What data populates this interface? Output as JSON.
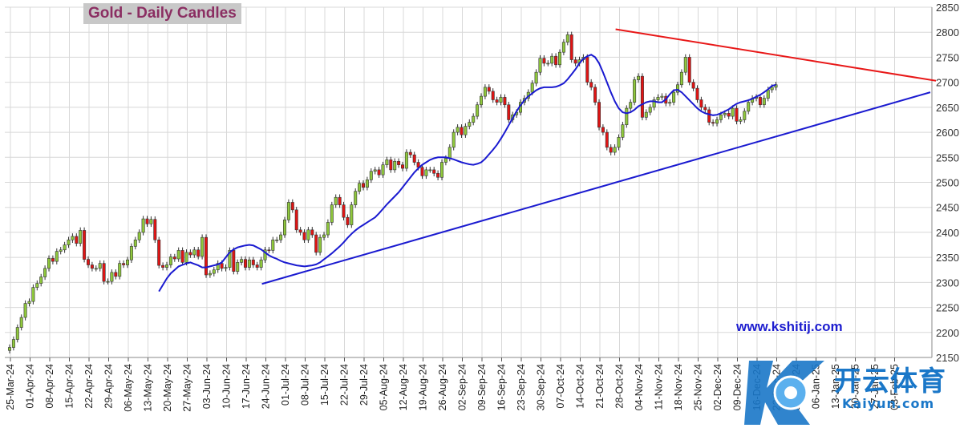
{
  "chart_data": {
    "type": "candlestick",
    "title": "Gold - Daily Candles",
    "ylim": [
      2150,
      2850
    ],
    "y_ticks": [
      2150,
      2200,
      2250,
      2300,
      2350,
      2400,
      2450,
      2500,
      2550,
      2600,
      2650,
      2700,
      2750,
      2800,
      2850
    ],
    "x_tick_labels": [
      "25-Mar-24",
      "01-Apr-24",
      "08-Apr-24",
      "15-Apr-24",
      "22-Apr-24",
      "29-Apr-24",
      "06-May-24",
      "13-May-24",
      "20-May-24",
      "27-May-24",
      "03-Jun-24",
      "10-Jun-24",
      "17-Jun-24",
      "24-Jun-24",
      "01-Jul-24",
      "08-Jul-24",
      "15-Jul-24",
      "22-Jul-24",
      "29-Jul-24",
      "05-Aug-24",
      "12-Aug-24",
      "19-Aug-24",
      "26-Aug-24",
      "02-Sep-24",
      "09-Sep-24",
      "16-Sep-24",
      "23-Sep-24",
      "30-Sep-24",
      "07-Oct-24",
      "14-Oct-24",
      "21-Oct-24",
      "28-Oct-24",
      "04-Nov-24",
      "11-Nov-24",
      "18-Nov-24",
      "25-Nov-24",
      "02-Dec-24",
      "09-Dec-24",
      "16-Dec-24",
      "23-Dec-24",
      "30-Dec-24",
      "06-Jan-25",
      "13-Jan-25",
      "20-Jan-25",
      "27-Jan-25",
      "03-Feb-25"
    ],
    "grid": true,
    "closes": [
      2170,
      2186,
      2210,
      2230,
      2258,
      2262,
      2290,
      2298,
      2311,
      2328,
      2348,
      2342,
      2362,
      2365,
      2375,
      2385,
      2392,
      2378,
      2404,
      2346,
      2335,
      2328,
      2328,
      2338,
      2302,
      2302,
      2320,
      2312,
      2338,
      2335,
      2345,
      2372,
      2385,
      2400,
      2427,
      2417,
      2426,
      2385,
      2334,
      2330,
      2335,
      2351,
      2347,
      2364,
      2340,
      2360,
      2355,
      2365,
      2352,
      2390,
      2315,
      2318,
      2325,
      2338,
      2328,
      2330,
      2364,
      2322,
      2340,
      2346,
      2330,
      2345,
      2335,
      2330,
      2345,
      2365,
      2364,
      2385,
      2385,
      2395,
      2425,
      2460,
      2445,
      2405,
      2400,
      2385,
      2405,
      2395,
      2360,
      2390,
      2395,
      2420,
      2455,
      2470,
      2455,
      2430,
      2415,
      2455,
      2482,
      2498,
      2490,
      2505,
      2522,
      2525,
      2515,
      2535,
      2545,
      2525,
      2542,
      2535,
      2528,
      2560,
      2555,
      2540,
      2530,
      2513,
      2525,
      2525,
      2518,
      2510,
      2540,
      2548,
      2570,
      2600,
      2610,
      2595,
      2612,
      2620,
      2632,
      2655,
      2672,
      2690,
      2682,
      2665,
      2660,
      2670,
      2655,
      2625,
      2635,
      2640,
      2660,
      2668,
      2680,
      2698,
      2720,
      2748,
      2738,
      2738,
      2752,
      2735,
      2760,
      2780,
      2795,
      2745,
      2738,
      2745,
      2750,
      2700,
      2690,
      2660,
      2610,
      2600,
      2570,
      2560,
      2570,
      2590,
      2615,
      2648,
      2660,
      2705,
      2712,
      2630,
      2640,
      2650,
      2665,
      2670,
      2672,
      2658,
      2660,
      2680,
      2695,
      2720,
      2750,
      2700,
      2688,
      2665,
      2650,
      2645,
      2620,
      2618,
      2625,
      2635,
      2638,
      2632,
      2648,
      2622,
      2625,
      2642,
      2660,
      2668,
      2670,
      2655,
      2668,
      2685,
      2690,
      2695
    ],
    "moving_average": [
      2282,
      2295,
      2308,
      2318,
      2325,
      2332,
      2335,
      2338,
      2340,
      2337,
      2334,
      2330,
      2330,
      2332,
      2334,
      2336,
      2340,
      2350,
      2360,
      2366,
      2370,
      2372,
      2374,
      2375,
      2374,
      2370,
      2366,
      2360,
      2354,
      2350,
      2347,
      2343,
      2340,
      2338,
      2336,
      2334,
      2333,
      2332,
      2333,
      2334,
      2336,
      2340,
      2346,
      2352,
      2358,
      2365,
      2372,
      2380,
      2389,
      2397,
      2404,
      2410,
      2415,
      2420,
      2425,
      2430,
      2438,
      2447,
      2456,
      2464,
      2472,
      2480,
      2490,
      2500,
      2510,
      2520,
      2528,
      2535,
      2540,
      2545,
      2548,
      2550,
      2550,
      2550,
      2548,
      2546,
      2543,
      2540,
      2538,
      2536,
      2535,
      2537,
      2540,
      2547,
      2556,
      2565,
      2575,
      2587,
      2600,
      2614,
      2628,
      2642,
      2654,
      2664,
      2672,
      2678,
      2684,
      2688,
      2690,
      2690,
      2690,
      2691,
      2694,
      2698,
      2706,
      2716,
      2726,
      2738,
      2747,
      2752,
      2755,
      2750,
      2738,
      2720,
      2700,
      2680,
      2662,
      2648,
      2640,
      2638,
      2640,
      2645,
      2652,
      2656,
      2660,
      2662,
      2662,
      2660,
      2660,
      2666,
      2676,
      2684,
      2685,
      2680,
      2672,
      2664,
      2656,
      2648,
      2642,
      2638,
      2636,
      2634,
      2635,
      2638,
      2642,
      2646,
      2652,
      2657,
      2660,
      2662,
      2664,
      2667,
      2671,
      2675,
      2680,
      2686,
      2693,
      2695
    ],
    "resistance_line": {
      "start_date": "25-Oct-24",
      "start_value": 2806,
      "end_value": 2703
    },
    "support_line": {
      "start_date": "21-Jun-24",
      "start_value": 2297,
      "end_value": 2680
    }
  },
  "watermark_url": "www.kshitij.com",
  "brand_cn": "开云体育",
  "brand_en": "Kaiyun.com",
  "colors": {
    "up_candle": "#8fc83c",
    "down_candle": "#e01414",
    "moving_average": "#1a1ad0",
    "support": "#1a1ad0",
    "resistance": "#e81818",
    "grid": "#d8d8d8"
  }
}
